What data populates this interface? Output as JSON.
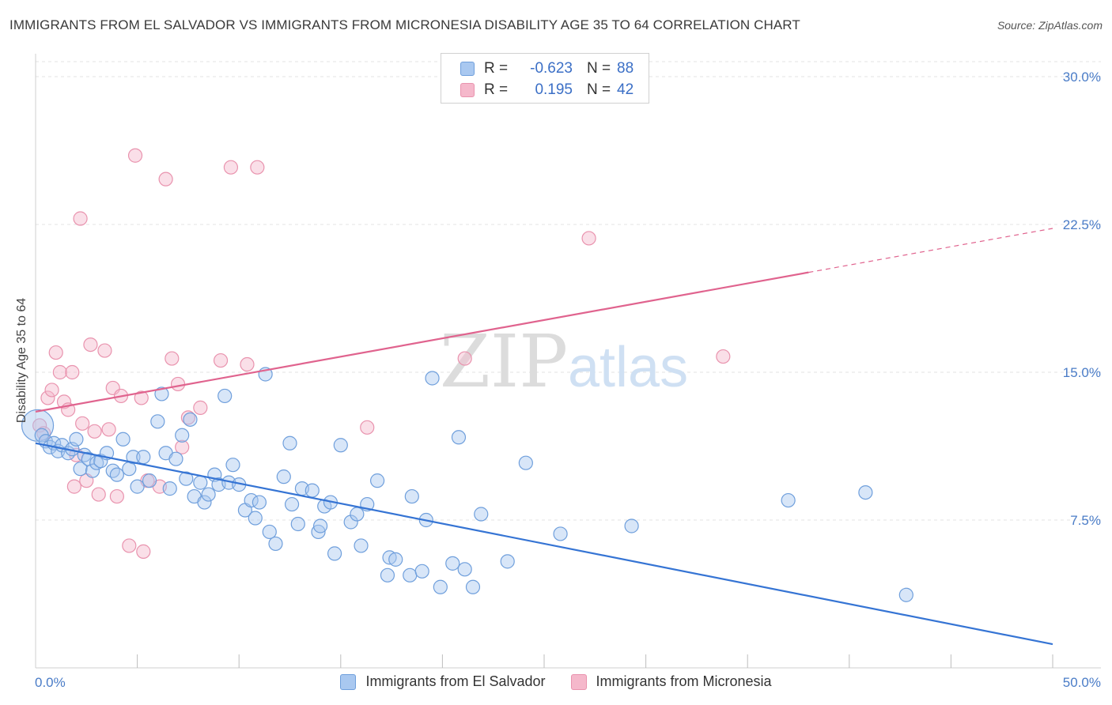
{
  "title": "IMMIGRANTS FROM EL SALVADOR VS IMMIGRANTS FROM MICRONESIA DISABILITY AGE 35 TO 64 CORRELATION CHART",
  "source": "Source: ZipAtlas.com",
  "watermark": {
    "zip": "ZIP",
    "atlas": "atlas"
  },
  "legend": {
    "rows": [
      {
        "r_label": "R =",
        "r_value": "-0.623",
        "n_label": "N =",
        "n_value": "88"
      },
      {
        "r_label": "R =",
        "r_value": "0.195",
        "n_label": "N =",
        "n_value": "42"
      }
    ]
  },
  "colors": {
    "blue_fill": "#a9c8f0",
    "blue_stroke": "#6f9fdc",
    "blue_line": "#3574d4",
    "pink_fill": "#f5b8cb",
    "pink_stroke": "#e993ae",
    "pink_line": "#e0638e",
    "tick_label": "#4a7cc7",
    "grid": "#e3e3e3"
  },
  "chart_data": {
    "type": "scatter",
    "ylabel": "Disability Age 35 to 64",
    "x_tick_labels": [
      "0.0%",
      "50.0%"
    ],
    "y_tick_labels": [
      "7.5%",
      "15.0%",
      "22.5%",
      "30.0%"
    ],
    "y_ticks": [
      7.5,
      15.0,
      22.5,
      30.0
    ],
    "xlim": [
      0,
      50
    ],
    "ylim": [
      0,
      31
    ],
    "grid": true,
    "legend_placement": "top-center",
    "series": [
      {
        "name": "Immigrants from El Salvador",
        "color": "#a9c8f0",
        "points": [
          [
            0.1,
            12.3
          ],
          [
            0.3,
            11.8
          ],
          [
            0.5,
            11.5
          ],
          [
            0.7,
            11.2
          ],
          [
            0.9,
            11.4
          ],
          [
            1.1,
            11.0
          ],
          [
            1.3,
            11.3
          ],
          [
            1.6,
            10.9
          ],
          [
            1.8,
            11.1
          ],
          [
            2.0,
            11.6
          ],
          [
            2.2,
            10.1
          ],
          [
            2.4,
            10.8
          ],
          [
            2.6,
            10.6
          ],
          [
            2.8,
            10.0
          ],
          [
            3.0,
            10.4
          ],
          [
            3.2,
            10.5
          ],
          [
            3.5,
            10.9
          ],
          [
            3.8,
            10.0
          ],
          [
            4.0,
            9.8
          ],
          [
            4.3,
            11.6
          ],
          [
            4.6,
            10.1
          ],
          [
            4.8,
            10.7
          ],
          [
            5.0,
            9.2
          ],
          [
            5.3,
            10.7
          ],
          [
            5.6,
            9.5
          ],
          [
            6.0,
            12.5
          ],
          [
            6.2,
            13.9
          ],
          [
            6.4,
            10.9
          ],
          [
            6.6,
            9.1
          ],
          [
            6.9,
            10.6
          ],
          [
            7.2,
            11.8
          ],
          [
            7.4,
            9.6
          ],
          [
            7.6,
            12.6
          ],
          [
            7.8,
            8.7
          ],
          [
            8.1,
            9.4
          ],
          [
            8.3,
            8.4
          ],
          [
            8.5,
            8.8
          ],
          [
            8.8,
            9.8
          ],
          [
            9.0,
            9.3
          ],
          [
            9.3,
            13.8
          ],
          [
            9.5,
            9.4
          ],
          [
            9.7,
            10.3
          ],
          [
            10.0,
            9.3
          ],
          [
            10.3,
            8.0
          ],
          [
            10.6,
            8.5
          ],
          [
            10.8,
            7.6
          ],
          [
            11.0,
            8.4
          ],
          [
            11.3,
            14.9
          ],
          [
            11.5,
            6.9
          ],
          [
            11.8,
            6.3
          ],
          [
            12.2,
            9.7
          ],
          [
            12.5,
            11.4
          ],
          [
            12.6,
            8.3
          ],
          [
            12.9,
            7.3
          ],
          [
            13.1,
            9.1
          ],
          [
            13.6,
            9.0
          ],
          [
            13.9,
            6.9
          ],
          [
            14.0,
            7.2
          ],
          [
            14.2,
            8.2
          ],
          [
            14.5,
            8.4
          ],
          [
            14.7,
            5.8
          ],
          [
            15.0,
            11.3
          ],
          [
            15.5,
            7.4
          ],
          [
            15.8,
            7.8
          ],
          [
            16.0,
            6.2
          ],
          [
            16.3,
            8.3
          ],
          [
            16.8,
            9.5
          ],
          [
            17.3,
            4.7
          ],
          [
            17.4,
            5.6
          ],
          [
            17.7,
            5.5
          ],
          [
            18.4,
            4.7
          ],
          [
            18.5,
            8.7
          ],
          [
            19.0,
            4.9
          ],
          [
            19.2,
            7.5
          ],
          [
            19.5,
            14.7
          ],
          [
            19.9,
            4.1
          ],
          [
            20.5,
            5.3
          ],
          [
            20.8,
            11.7
          ],
          [
            21.1,
            5.0
          ],
          [
            21.5,
            4.1
          ],
          [
            21.9,
            7.8
          ],
          [
            23.2,
            5.4
          ],
          [
            24.1,
            10.4
          ],
          [
            25.8,
            6.8
          ],
          [
            29.3,
            7.2
          ],
          [
            37.0,
            8.5
          ],
          [
            40.8,
            8.9
          ],
          [
            42.8,
            3.7
          ]
        ],
        "trendline": {
          "x": [
            0,
            50
          ],
          "y": [
            11.4,
            1.2
          ]
        }
      },
      {
        "name": "Immigrants from Micronesia",
        "color": "#f5b8cb",
        "points": [
          [
            0.2,
            12.3
          ],
          [
            0.4,
            11.9
          ],
          [
            0.6,
            13.7
          ],
          [
            0.8,
            14.1
          ],
          [
            1.0,
            16.0
          ],
          [
            1.2,
            15.0
          ],
          [
            1.4,
            13.5
          ],
          [
            1.6,
            13.1
          ],
          [
            1.8,
            15.0
          ],
          [
            1.9,
            9.2
          ],
          [
            2.0,
            10.8
          ],
          [
            2.2,
            22.8
          ],
          [
            2.3,
            12.4
          ],
          [
            2.5,
            9.5
          ],
          [
            2.7,
            16.4
          ],
          [
            2.9,
            12.0
          ],
          [
            3.1,
            8.8
          ],
          [
            3.4,
            16.1
          ],
          [
            3.6,
            12.1
          ],
          [
            3.8,
            14.2
          ],
          [
            4.0,
            8.7
          ],
          [
            4.2,
            13.8
          ],
          [
            4.6,
            6.2
          ],
          [
            4.9,
            26.0
          ],
          [
            5.2,
            13.7
          ],
          [
            5.3,
            5.9
          ],
          [
            5.5,
            9.5
          ],
          [
            6.1,
            9.2
          ],
          [
            6.4,
            24.8
          ],
          [
            6.7,
            15.7
          ],
          [
            7.0,
            14.4
          ],
          [
            7.2,
            11.2
          ],
          [
            7.5,
            12.7
          ],
          [
            8.1,
            13.2
          ],
          [
            9.1,
            15.6
          ],
          [
            9.6,
            25.4
          ],
          [
            10.4,
            15.4
          ],
          [
            10.9,
            25.4
          ],
          [
            16.3,
            12.2
          ],
          [
            21.1,
            15.7
          ],
          [
            27.2,
            21.8
          ],
          [
            33.8,
            15.8
          ]
        ],
        "trendline": {
          "x": [
            0,
            50
          ],
          "y": [
            13.0,
            22.3
          ]
        },
        "trendline_solid_until_x": 38.0
      }
    ]
  },
  "bottom_legend": [
    {
      "label": "Immigrants from El Salvador"
    },
    {
      "label": "Immigrants from Micronesia"
    }
  ]
}
